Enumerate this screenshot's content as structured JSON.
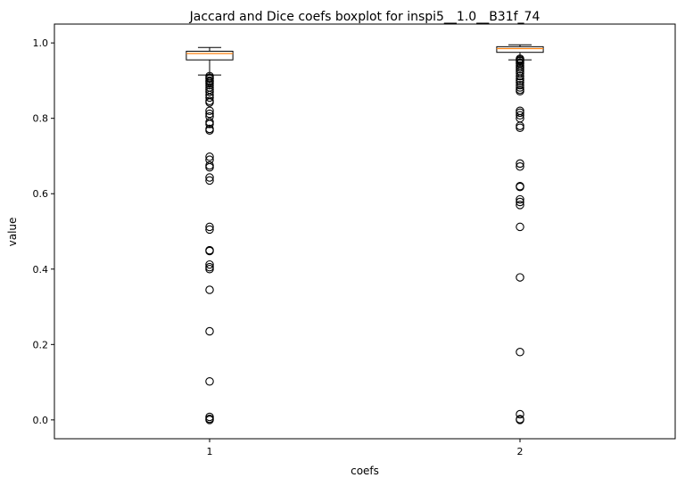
{
  "chart_data": {
    "type": "boxplot",
    "title": "Jaccard and Dice coefs boxplot for inspi5__1.0__B31f_74",
    "xlabel": "coefs",
    "ylabel": "value",
    "categories": [
      "1",
      "2"
    ],
    "ylim": [
      -0.05,
      1.05
    ],
    "yticks": [
      0.0,
      0.2,
      0.4,
      0.6,
      0.8,
      1.0
    ],
    "ytick_labels": [
      "0.0",
      "0.2",
      "0.4",
      "0.6",
      "0.8",
      "1.0"
    ],
    "grid": false,
    "boxes": [
      {
        "category": "1",
        "whisker_low": 0.915,
        "q1": 0.955,
        "median": 0.972,
        "q3": 0.978,
        "whisker_high": 0.988,
        "outliers": [
          0.912,
          0.908,
          0.905,
          0.9,
          0.897,
          0.893,
          0.888,
          0.882,
          0.876,
          0.87,
          0.862,
          0.855,
          0.846,
          0.842,
          0.82,
          0.812,
          0.805,
          0.79,
          0.785,
          0.772,
          0.768,
          0.698,
          0.69,
          0.675,
          0.67,
          0.643,
          0.635,
          0.512,
          0.505,
          0.45,
          0.448,
          0.412,
          0.405,
          0.4,
          0.345,
          0.235,
          0.102,
          0.008,
          0.003,
          0.0
        ]
      },
      {
        "category": "2",
        "whisker_low": 0.955,
        "q1": 0.975,
        "median": 0.985,
        "q3": 0.99,
        "whisker_high": 0.995,
        "outliers": [
          0.958,
          0.955,
          0.952,
          0.948,
          0.945,
          0.94,
          0.935,
          0.93,
          0.925,
          0.92,
          0.912,
          0.905,
          0.9,
          0.895,
          0.888,
          0.882,
          0.876,
          0.872,
          0.82,
          0.815,
          0.808,
          0.8,
          0.78,
          0.775,
          0.68,
          0.672,
          0.62,
          0.618,
          0.585,
          0.578,
          0.57,
          0.512,
          0.378,
          0.18,
          0.015,
          0.002,
          0.0
        ]
      }
    ],
    "colors": {
      "median": "#ff7f0e",
      "box": "#000000",
      "outlier_edge": "#000000"
    }
  }
}
